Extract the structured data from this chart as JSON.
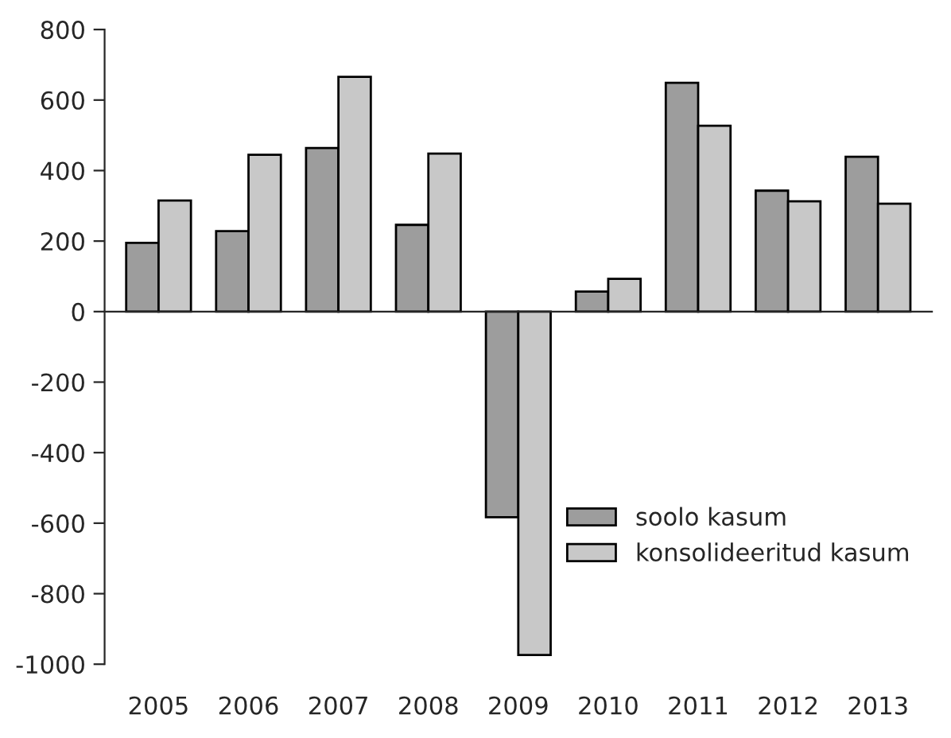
{
  "chart_data": {
    "type": "bar",
    "categories": [
      "2005",
      "2006",
      "2007",
      "2008",
      "2009",
      "2010",
      "2011",
      "2012",
      "2013"
    ],
    "series": [
      {
        "name": "soolo kasum",
        "color": "#9d9d9d",
        "values": [
          195,
          228,
          464,
          246,
          -583,
          57,
          649,
          343,
          439
        ]
      },
      {
        "name": "konsolideeritud kasum",
        "color": "#c8c8c8",
        "values": [
          315,
          445,
          666,
          448,
          -974,
          93,
          527,
          313,
          306
        ]
      }
    ],
    "ylim": [
      -1000,
      800
    ],
    "yticks": [
      {
        "value": -1000,
        "label": "-1000"
      },
      {
        "value": -800,
        "label": "-800"
      },
      {
        "value": -600,
        "label": "-600"
      },
      {
        "value": -400,
        "label": "-400"
      },
      {
        "value": -200,
        "label": "-200"
      },
      0,
      200,
      400,
      600,
      800
    ],
    "legend": "bottom right"
  }
}
